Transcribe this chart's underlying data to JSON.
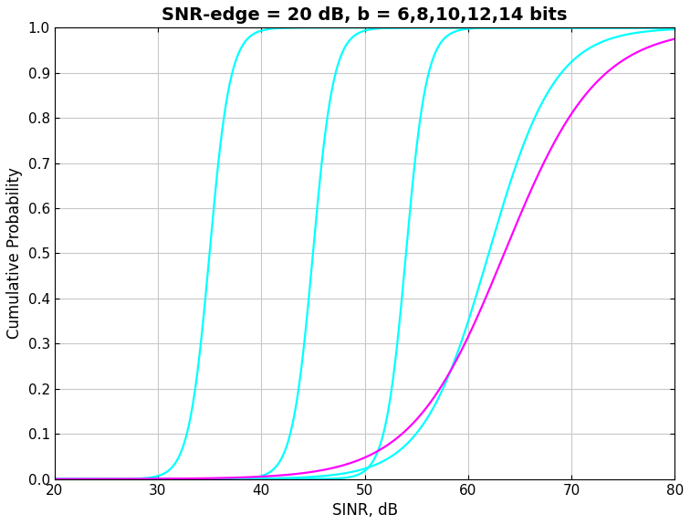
{
  "title": "SNR-edge = 20 dB, b = 6,8,10,12,14 bits",
  "xlabel": "SINR, dB",
  "ylabel": "Cumulative Probability",
  "xlim": [
    20,
    80
  ],
  "ylim": [
    0,
    1
  ],
  "xticks": [
    20,
    30,
    40,
    50,
    60,
    70,
    80
  ],
  "yticks": [
    0,
    0.1,
    0.2,
    0.3,
    0.4,
    0.5,
    0.6,
    0.7,
    0.8,
    0.9,
    1.0
  ],
  "background_color": "#ffffff",
  "grid_color": "#c8c8c8",
  "bits": [
    6,
    8,
    10,
    12,
    14
  ],
  "centers": [
    35.0,
    45.0,
    54.0,
    62.0,
    63.5
  ],
  "sigmas": [
    1.0,
    1.0,
    1.0,
    3.2,
    4.5
  ],
  "curve_colors": [
    "#00FFFF",
    "#00FFFF",
    "#00FFFF",
    "#00FFFF",
    "#FF00FF"
  ],
  "title_fontsize": 14,
  "axis_fontsize": 12,
  "tick_fontsize": 11,
  "linewidth": 1.6
}
